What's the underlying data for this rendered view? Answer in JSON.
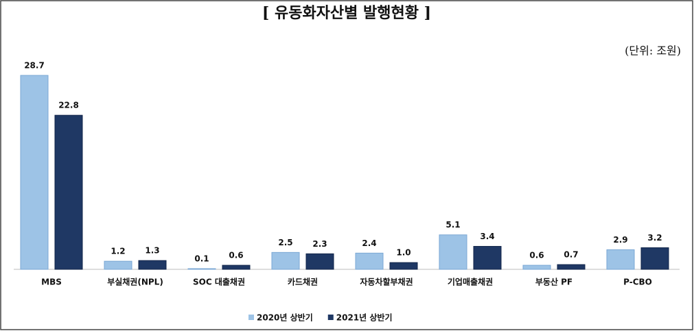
{
  "chart_data": {
    "type": "bar",
    "title": "[ 유동화자산별 발행현황 ]",
    "unit": "(단위: 조원)",
    "categories": [
      "MBS",
      "부실채권(NPL)",
      "SOC 대출채권",
      "카드채권",
      "자동차할부채권",
      "기업매출채권",
      "부동산 PF",
      "P-CBO"
    ],
    "series": [
      {
        "name": "2020년 상반기",
        "color": "#9dc3e6",
        "values": [
          28.7,
          1.2,
          0.1,
          2.5,
          2.4,
          5.1,
          0.6,
          2.9
        ],
        "value_labels": [
          "28.7",
          "1.2",
          "0.1",
          "2.5",
          "2.4",
          "5.1",
          "0.6",
          "2.9"
        ]
      },
      {
        "name": "2021년 상반기",
        "color": "#1f3864",
        "values": [
          22.8,
          1.3,
          0.6,
          2.3,
          1.0,
          3.4,
          0.7,
          3.2
        ],
        "value_labels": [
          "22.8",
          "1.3",
          "0.6",
          "2.3",
          "1.0",
          "3.4",
          "0.7",
          "3.2"
        ]
      }
    ],
    "legend": "bottom"
  }
}
